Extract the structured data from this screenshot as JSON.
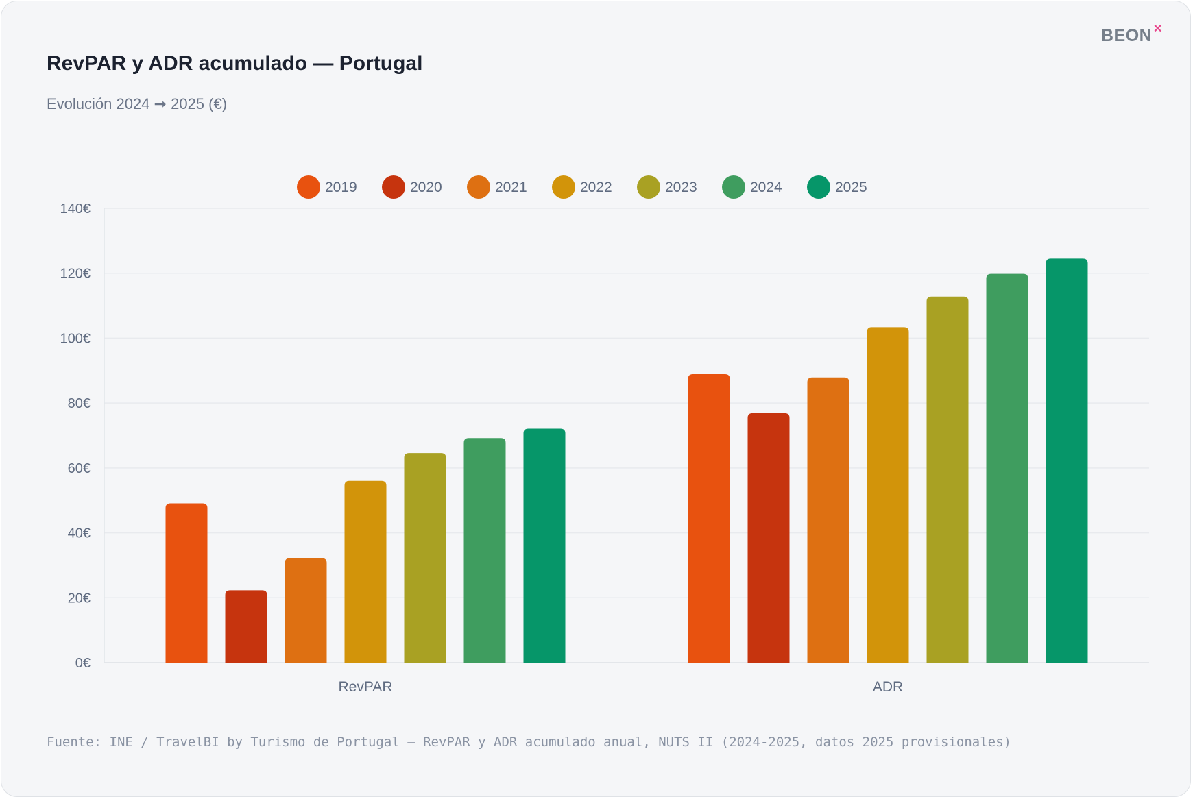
{
  "header": {
    "title": "RevPAR y ADR acumulado — Portugal",
    "subtitle": "Evolución 2024 ➞ 2025 (€)",
    "logo": "BEONX"
  },
  "footer": {
    "source": "Fuente: INE / TravelBI by Turismo de Portugal — RevPAR y ADR acumulado anual, NUTS II (2024-2025, datos 2025 provisionales)"
  },
  "chart_data": {
    "type": "bar",
    "categories": [
      "RevPAR",
      "ADR"
    ],
    "series": [
      {
        "name": "2019",
        "color": "#e8520f",
        "values": [
          49.1,
          88.9
        ]
      },
      {
        "name": "2020",
        "color": "#c6340e",
        "values": [
          22.3,
          76.9
        ]
      },
      {
        "name": "2021",
        "color": "#de7012",
        "values": [
          32.2,
          87.9
        ]
      },
      {
        "name": "2022",
        "color": "#d2940a",
        "values": [
          56.0,
          103.4
        ]
      },
      {
        "name": "2023",
        "color": "#a9a123",
        "values": [
          64.6,
          112.8
        ]
      },
      {
        "name": "2024",
        "color": "#3f9d5f",
        "values": [
          69.2,
          119.8
        ]
      },
      {
        "name": "2025",
        "color": "#069669",
        "values": [
          72.1,
          124.5
        ]
      }
    ],
    "ylim": [
      0,
      140
    ],
    "yticks": [
      "0€",
      "20€",
      "40€",
      "60€",
      "80€",
      "100€",
      "120€",
      "140€"
    ],
    "grid": true,
    "legend": "top-center"
  }
}
